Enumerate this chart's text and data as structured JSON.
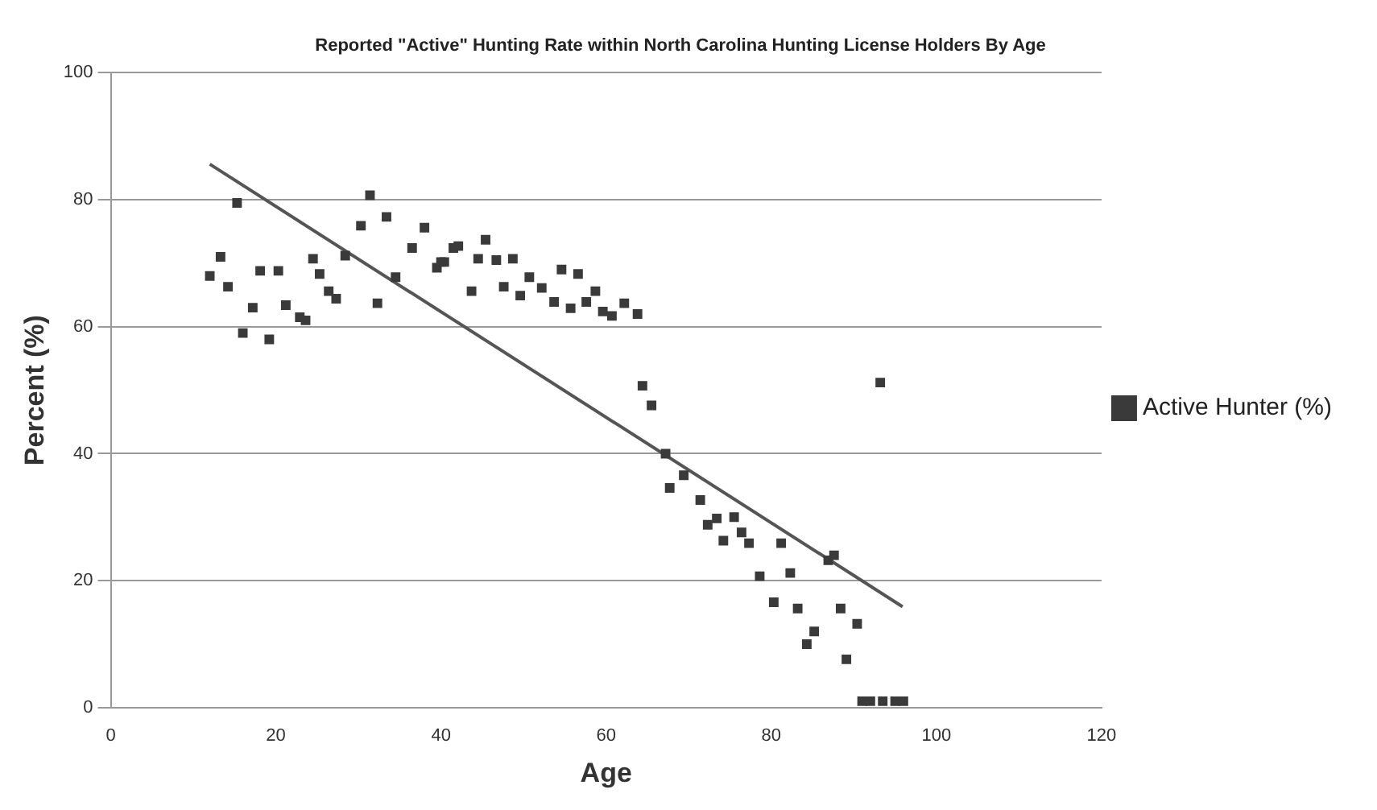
{
  "chart_data": {
    "type": "scatter",
    "title": "Reported \"Active\" Hunting Rate within North Carolina Hunting License Holders By Age",
    "xlabel": "Age",
    "ylabel": "Percent (%)",
    "xlim": [
      0,
      120
    ],
    "xticks": [
      0,
      20,
      40,
      60,
      80,
      100,
      120
    ],
    "ylim": [
      0,
      100
    ],
    "yticks": [
      0,
      20,
      40,
      60,
      80,
      100
    ],
    "grid": "y",
    "legend": "right",
    "marker": "square",
    "series": [
      {
        "name": "Active Hunter (%)",
        "color": "#3a3a3a",
        "x": [
          12,
          13.3,
          14.2,
          15.3,
          16,
          17.2,
          18.1,
          19.2,
          20.3,
          21.2,
          22.9,
          23.6,
          24.5,
          25.3,
          26.4,
          27.3,
          28.4,
          30.3,
          31.4,
          32.3,
          33.4,
          34.5,
          36.5,
          38,
          39.5,
          40,
          40.4,
          41.5,
          42.1,
          43.7,
          44.5,
          45.4,
          46.7,
          47.6,
          48.7,
          49.6,
          50.7,
          52.2,
          53.7,
          54.6,
          55.7,
          56.6,
          57.6,
          58.7,
          59.6,
          60.7,
          62.2,
          63.8,
          64.4,
          65.5,
          67.2,
          67.7,
          69.4,
          71.4,
          72.3,
          73.4,
          74.2,
          75.5,
          76.4,
          77.3,
          78.6,
          80.3,
          81.2,
          82.3,
          83.2,
          84.3,
          85.2,
          86.9,
          87.6,
          88.4,
          89.1,
          90.4,
          91,
          92,
          93.2,
          93.5,
          95,
          96
        ],
        "values": [
          68,
          71,
          66.3,
          79.5,
          59,
          63,
          68.8,
          58,
          68.8,
          63.4,
          61.5,
          61,
          70.7,
          68.3,
          65.6,
          64.4,
          71.2,
          75.9,
          80.7,
          63.7,
          77.3,
          67.8,
          72.4,
          75.6,
          69.3,
          70.2,
          70.2,
          72.4,
          72.7,
          65.6,
          70.7,
          73.7,
          70.5,
          66.3,
          70.7,
          64.9,
          67.8,
          66.1,
          63.9,
          69,
          62.9,
          68.3,
          63.9,
          65.6,
          62.4,
          61.7,
          63.7,
          62,
          50.7,
          47.6,
          40,
          34.6,
          36.6,
          32.7,
          28.8,
          29.8,
          26.3,
          30,
          27.6,
          25.9,
          20.7,
          16.6,
          25.9,
          21.2,
          15.6,
          10,
          12,
          23.2,
          24,
          15.6,
          7.6,
          13.2,
          1,
          1,
          51.2,
          1,
          1,
          1
        ]
      },
      {
        "type": "line",
        "color": "#555555",
        "marker": "none",
        "x": [
          12,
          95.9
        ],
        "values": [
          85.6,
          15.9
        ]
      }
    ]
  }
}
